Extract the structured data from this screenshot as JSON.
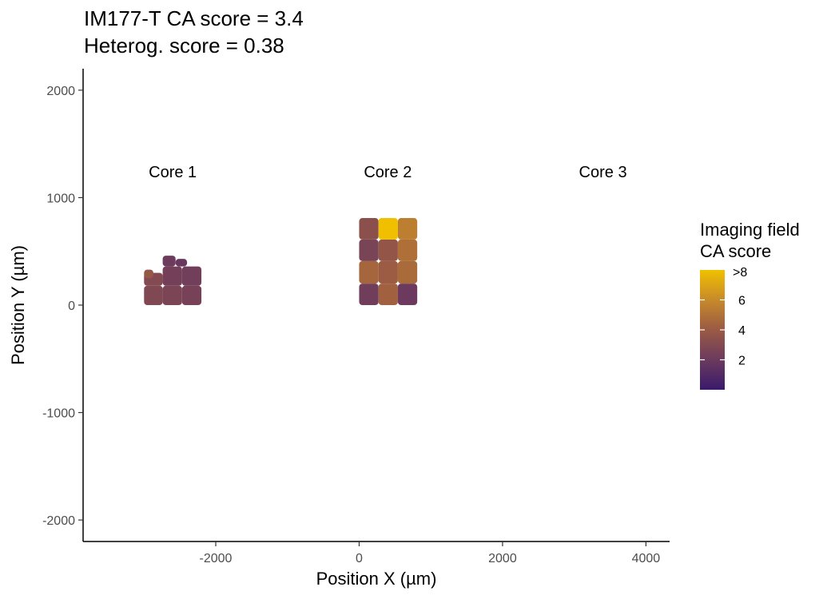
{
  "title_line1": "IM177-T  CA score = 3.4",
  "title_line2": "Heterog. score = 0.38",
  "chart_data": {
    "type": "scatter",
    "xlabel": "Position X (µm)",
    "ylabel": "Position Y (µm)",
    "xlim": [
      -3850,
      4330
    ],
    "ylim": [
      -2200,
      2200
    ],
    "xticks": [
      -2000,
      0,
      2000,
      4000
    ],
    "yticks": [
      -2000,
      -1000,
      0,
      1000,
      2000
    ],
    "grid": false,
    "annotations": [
      {
        "text": "Core 1",
        "x": -2600,
        "y": 1240
      },
      {
        "text": "Core 2",
        "x": 400,
        "y": 1240
      },
      {
        "text": "Core 3",
        "x": 3400,
        "y": 1240
      }
    ],
    "color_scale": {
      "title_line1": "Imaging field",
      "title_line2": "CA score",
      "min": 0,
      "max": 8,
      "ticks": [
        2,
        4,
        6
      ],
      "top_label": ">8",
      "colors": [
        "#3a1a6b",
        "#6b3a5e",
        "#9a5a44",
        "#c78a2a",
        "#f0c000"
      ]
    },
    "fields": [
      {
        "core": "Core 1",
        "x0": -3000,
        "x1": -2740,
        "y0": 0,
        "y1": 180,
        "score": 2.9
      },
      {
        "core": "Core 1",
        "x0": -2740,
        "x1": -2470,
        "y0": 0,
        "y1": 180,
        "score": 2.7
      },
      {
        "core": "Core 1",
        "x0": -2470,
        "x1": -2200,
        "y0": 0,
        "y1": 180,
        "score": 2.5
      },
      {
        "core": "Core 1",
        "x0": -3000,
        "x1": -2740,
        "y0": 180,
        "y1": 300,
        "score": 3.0
      },
      {
        "core": "Core 1",
        "x0": -2740,
        "x1": -2470,
        "y0": 180,
        "y1": 360,
        "score": 2.4
      },
      {
        "core": "Core 1",
        "x0": -2470,
        "x1": -2200,
        "y0": 180,
        "y1": 360,
        "score": 2.3
      },
      {
        "core": "Core 1",
        "x0": -2740,
        "x1": -2560,
        "y0": 360,
        "y1": 460,
        "score": 2.1
      },
      {
        "core": "Core 1",
        "x0": -2560,
        "x1": -2400,
        "y0": 360,
        "y1": 430,
        "score": 1.9
      },
      {
        "core": "Core 1",
        "x0": -3000,
        "x1": -2870,
        "y0": 250,
        "y1": 330,
        "score": 3.8
      },
      {
        "core": "Core 2",
        "x0": 0,
        "x1": 270,
        "y0": 0,
        "y1": 200,
        "score": 2.2
      },
      {
        "core": "Core 2",
        "x0": 270,
        "x1": 540,
        "y0": 0,
        "y1": 200,
        "score": 4.3
      },
      {
        "core": "Core 2",
        "x0": 540,
        "x1": 810,
        "y0": 0,
        "y1": 200,
        "score": 2.0
      },
      {
        "core": "Core 2",
        "x0": 0,
        "x1": 270,
        "y0": 200,
        "y1": 410,
        "score": 4.5
      },
      {
        "core": "Core 2",
        "x0": 270,
        "x1": 540,
        "y0": 200,
        "y1": 410,
        "score": 4.1
      },
      {
        "core": "Core 2",
        "x0": 540,
        "x1": 810,
        "y0": 200,
        "y1": 410,
        "score": 4.7
      },
      {
        "core": "Core 2",
        "x0": 0,
        "x1": 270,
        "y0": 410,
        "y1": 610,
        "score": 2.6
      },
      {
        "core": "Core 2",
        "x0": 270,
        "x1": 540,
        "y0": 410,
        "y1": 610,
        "score": 3.7
      },
      {
        "core": "Core 2",
        "x0": 540,
        "x1": 810,
        "y0": 410,
        "y1": 610,
        "score": 4.9
      },
      {
        "core": "Core 2",
        "x0": 0,
        "x1": 270,
        "y0": 610,
        "y1": 810,
        "score": 3.4
      },
      {
        "core": "Core 2",
        "x0": 270,
        "x1": 540,
        "y0": 610,
        "y1": 810,
        "score": 8.0
      },
      {
        "core": "Core 2",
        "x0": 540,
        "x1": 810,
        "y0": 610,
        "y1": 810,
        "score": 5.5
      }
    ]
  }
}
